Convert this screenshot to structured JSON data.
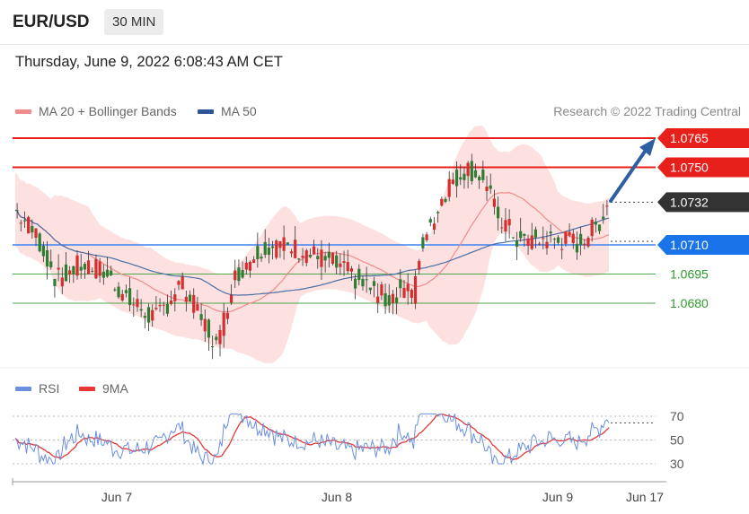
{
  "header": {
    "symbol": "EUR/USD",
    "timeframe": "30 MIN"
  },
  "timestamp": "Thursday, June 9, 2022 6:08:43 AM CET",
  "legend": {
    "ma20_label": "MA 20 + Bollinger Bands",
    "ma50_label": "MA 50",
    "credit": "Research © 2022 Trading Central"
  },
  "rsi_legend": {
    "rsi_label": "RSI",
    "ma_label": "9MA"
  },
  "colors": {
    "resistance": "#e8201c",
    "support": "#3b82f6",
    "target": "#2e9b2e",
    "arrow": "#2f5fa3",
    "ma20": "#f28b8b",
    "ma50": "#4a6fa5",
    "band_fill": "#fde0e0",
    "bull": "#d32f2f",
    "bear": "#2e7d32",
    "rsi": "#6a8fe0",
    "rsi_ma": "#e53935"
  },
  "chart_data": [
    {
      "type": "candlestick",
      "x_ticks": [
        "Jun 7",
        "Jun 8",
        "Jun 9",
        "Jun 17"
      ],
      "ylim": [
        1.0616,
        1.0773
      ],
      "levels": [
        {
          "value": 1.0765,
          "label": "1.0765",
          "kind": "resistance"
        },
        {
          "value": 1.075,
          "label": "1.0750",
          "kind": "resistance"
        },
        {
          "value": 1.0732,
          "label": "1.0732",
          "kind": "last"
        },
        {
          "value": 1.071,
          "label": "1.0710",
          "kind": "pivot"
        },
        {
          "value": 1.0695,
          "label": "1.0695",
          "kind": "target"
        },
        {
          "value": 1.068,
          "label": "1.0680",
          "kind": "target"
        }
      ],
      "series": [
        {
          "name": "MA 20 + Bollinger Bands"
        },
        {
          "name": "MA 50"
        }
      ]
    },
    {
      "type": "line",
      "y_ticks": [
        70,
        50,
        30
      ],
      "ylim": [
        25,
        75
      ],
      "series": [
        {
          "name": "RSI"
        },
        {
          "name": "9MA"
        }
      ]
    }
  ]
}
